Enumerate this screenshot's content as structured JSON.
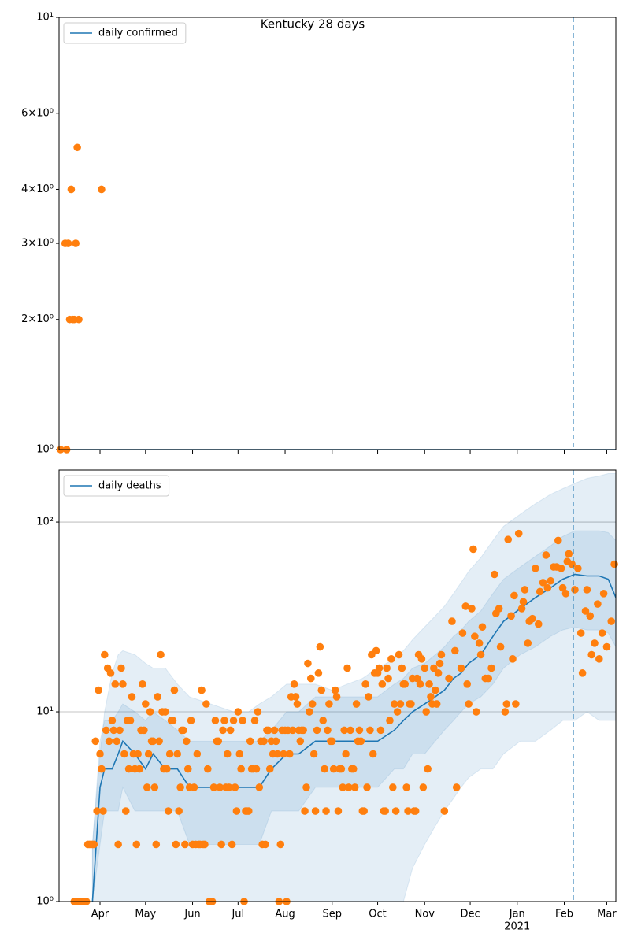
{
  "chart_data": [
    {
      "type": "line",
      "title": "Kentucky 28 days",
      "yscale": "log",
      "grid": false,
      "legend": "upper left",
      "xlim": [
        0,
        367
      ],
      "xticks": [
        27,
        57,
        88,
        118,
        149,
        180,
        210,
        241,
        271,
        302,
        333,
        361
      ],
      "ylim": [
        1,
        10
      ],
      "yticks": [
        {
          "value": 1,
          "label": "10⁰"
        },
        {
          "value": 2,
          "label": "2×10⁰"
        },
        {
          "value": 3,
          "label": "3×10⁰"
        },
        {
          "value": 4,
          "label": "4×10⁰"
        },
        {
          "value": 6,
          "label": "6×10⁰"
        },
        {
          "value": 10,
          "label": "10¹"
        }
      ],
      "vline": 339,
      "series": [
        {
          "name": "daily confirmed",
          "color": "#1f77b4",
          "x": [
            0,
            367
          ],
          "values": [
            1,
            1
          ]
        }
      ],
      "bands": [],
      "scatter": {
        "color": "#ff7f0e",
        "x": [
          1,
          4,
          5,
          6,
          7,
          8,
          9,
          10,
          11,
          12,
          13,
          28
        ],
        "values": [
          1,
          3,
          1,
          3,
          2,
          4,
          2,
          2,
          3,
          5,
          2,
          4
        ]
      }
    },
    {
      "type": "line",
      "yscale": "log",
      "grid": true,
      "legend": "upper left",
      "xlim": [
        0,
        367
      ],
      "xticks": [
        {
          "value": 27,
          "label": "Apr"
        },
        {
          "value": 57,
          "label": "May"
        },
        {
          "value": 88,
          "label": "Jun"
        },
        {
          "value": 118,
          "label": "Jul"
        },
        {
          "value": 149,
          "label": "Aug"
        },
        {
          "value": 180,
          "label": "Sep"
        },
        {
          "value": 210,
          "label": "Oct"
        },
        {
          "value": 241,
          "label": "Nov"
        },
        {
          "value": 271,
          "label": "Dec"
        },
        {
          "value": 302,
          "label": "Jan",
          "sublabel": "2021"
        },
        {
          "value": 333,
          "label": "Feb"
        },
        {
          "value": 361,
          "label": "Mar"
        }
      ],
      "ylim": [
        1,
        188
      ],
      "yticks": [
        {
          "value": 1,
          "label": "10⁰"
        },
        {
          "value": 10,
          "label": "10¹"
        },
        {
          "value": 100,
          "label": "10²"
        }
      ],
      "vline": 339,
      "series": [
        {
          "name": "daily deaths",
          "color": "#1f77b4",
          "x": [
            22,
            27,
            30,
            35,
            39,
            42,
            50,
            57,
            62,
            70,
            78,
            86,
            100,
            115,
            125,
            132,
            140,
            150,
            158,
            169,
            180,
            190,
            200,
            210,
            221,
            227,
            233,
            241,
            248,
            254,
            260,
            265,
            270,
            278,
            286,
            293,
            304,
            314,
            324,
            332,
            340,
            348,
            356,
            362,
            367
          ],
          "values": [
            1,
            4,
            5,
            5,
            6,
            7,
            6,
            5,
            6,
            5,
            5,
            4,
            4,
            4,
            4,
            4,
            5,
            6,
            6,
            7,
            7,
            7,
            7,
            7,
            8,
            9,
            10,
            11,
            12,
            13,
            15,
            16,
            18,
            20,
            25,
            30,
            35,
            40,
            45,
            50,
            53,
            52,
            52,
            50,
            40
          ]
        }
      ],
      "bands": [
        {
          "color": "#1f77b4",
          "lower": [
            1,
            1,
            1,
            1,
            1,
            1,
            1,
            1,
            1,
            1,
            1,
            1,
            1,
            1,
            1,
            1,
            1,
            1,
            1,
            1,
            1,
            1,
            1,
            1,
            1,
            1,
            1.5,
            2,
            2.5,
            3,
            3.5,
            4,
            4.5,
            5,
            5,
            6,
            7,
            7,
            8,
            9,
            9,
            10,
            9,
            9,
            9
          ],
          "upper": [
            2,
            6,
            10,
            16,
            20,
            21,
            20,
            18,
            17,
            17,
            14,
            12,
            11,
            10,
            10,
            11,
            12,
            14,
            14,
            14,
            13,
            14,
            15,
            17,
            19,
            21,
            24,
            28,
            32,
            36,
            42,
            48,
            55,
            65,
            80,
            95,
            110,
            125,
            140,
            150,
            160,
            170,
            175,
            180,
            180
          ]
        },
        {
          "color": "#1f77b4",
          "lower": [
            1,
            2,
            3,
            3,
            3,
            4,
            3,
            3,
            3,
            3,
            3,
            2,
            2,
            2,
            2,
            2,
            3,
            3,
            3,
            4,
            4,
            4,
            4,
            4,
            5,
            5,
            6,
            6,
            7,
            8,
            9,
            10,
            11,
            12,
            14,
            17,
            20,
            22,
            25,
            27,
            28,
            27,
            27,
            26,
            22
          ],
          "upper": [
            2,
            7,
            9,
            9,
            10,
            11,
            10,
            9,
            10,
            9,
            8,
            7,
            7,
            7,
            7,
            7,
            8,
            10,
            10,
            12,
            12,
            12,
            12,
            12,
            14,
            15,
            17,
            18,
            20,
            22,
            25,
            27,
            30,
            34,
            42,
            50,
            58,
            66,
            75,
            84,
            90,
            90,
            90,
            88,
            80
          ]
        }
      ],
      "scatter": {
        "color": "#ff7f0e",
        "x": [
          10,
          11,
          12,
          13,
          14,
          15,
          16,
          17,
          18,
          19,
          20,
          21,
          22,
          23,
          24,
          25,
          26,
          27,
          28,
          29,
          30,
          31,
          32,
          33,
          34,
          35,
          36,
          37,
          38,
          39,
          40,
          41,
          42,
          43,
          44,
          45,
          46,
          47,
          48,
          49,
          50,
          51,
          52,
          53,
          54,
          55,
          56,
          57,
          58,
          59,
          60,
          61,
          62,
          63,
          64,
          65,
          66,
          67,
          68,
          69,
          70,
          71,
          72,
          73,
          74,
          75,
          76,
          77,
          78,
          79,
          80,
          81,
          82,
          83,
          84,
          85,
          86,
          87,
          88,
          89,
          90,
          91,
          92,
          93,
          94,
          95,
          96,
          97,
          98,
          99,
          100,
          101,
          102,
          103,
          104,
          105,
          106,
          107,
          108,
          109,
          110,
          111,
          112,
          113,
          114,
          115,
          116,
          117,
          118,
          119,
          120,
          121,
          122,
          123,
          124,
          125,
          126,
          127,
          128,
          129,
          130,
          131,
          132,
          133,
          134,
          135,
          136,
          137,
          138,
          139,
          140,
          141,
          142,
          143,
          144,
          145,
          146,
          147,
          148,
          149,
          150,
          151,
          152,
          153,
          154,
          155,
          156,
          157,
          158,
          159,
          160,
          161,
          162,
          163,
          164,
          165,
          166,
          167,
          168,
          169,
          170,
          171,
          172,
          173,
          174,
          175,
          176,
          177,
          178,
          179,
          180,
          181,
          182,
          183,
          184,
          185,
          186,
          187,
          188,
          189,
          190,
          191,
          192,
          193,
          194,
          195,
          196,
          197,
          198,
          199,
          200,
          201,
          202,
          203,
          204,
          205,
          206,
          207,
          208,
          209,
          210,
          211,
          212,
          213,
          214,
          215,
          216,
          217,
          218,
          219,
          220,
          221,
          222,
          223,
          224,
          225,
          226,
          227,
          228,
          229,
          230,
          231,
          232,
          233,
          234,
          235,
          236,
          237,
          238,
          239,
          240,
          241,
          242,
          243,
          244,
          245,
          246,
          247,
          248,
          249,
          250,
          251,
          252,
          254,
          257,
          259,
          261,
          262,
          265,
          266,
          268,
          269,
          270,
          272,
          273,
          274,
          275,
          277,
          278,
          279,
          281,
          283,
          285,
          287,
          288,
          290,
          291,
          294,
          295,
          296,
          298,
          299,
          300,
          301,
          303,
          305,
          306,
          307,
          309,
          310,
          312,
          314,
          316,
          317,
          319,
          321,
          322,
          324,
          326,
          328,
          329,
          331,
          332,
          334,
          335,
          336,
          338,
          340,
          342,
          344,
          345,
          347,
          348,
          350,
          351,
          353,
          355,
          356,
          358,
          359,
          361,
          364,
          366
        ],
        "values": [
          1,
          1,
          1,
          1,
          1,
          1,
          1,
          1,
          1,
          2,
          2,
          2,
          2,
          2,
          7,
          3,
          13,
          6,
          5,
          3,
          20,
          8,
          17,
          7,
          16,
          9,
          8,
          14,
          7,
          2,
          8,
          17,
          14,
          6,
          3,
          9,
          5,
          9,
          12,
          6,
          5,
          2,
          6,
          5,
          8,
          14,
          8,
          11,
          4,
          6,
          10,
          7,
          7,
          4,
          2,
          12,
          7,
          20,
          10,
          5,
          10,
          5,
          3,
          6,
          9,
          9,
          13,
          2,
          6,
          3,
          4,
          8,
          8,
          2,
          7,
          5,
          4,
          9,
          2,
          4,
          2,
          6,
          2,
          2,
          13,
          2,
          2,
          11,
          5,
          1,
          1,
          1,
          4,
          9,
          7,
          7,
          4,
          2,
          8,
          9,
          4,
          6,
          4,
          8,
          2,
          9,
          4,
          3,
          10,
          6,
          5,
          9,
          1,
          3,
          3,
          3,
          7,
          5,
          5,
          9,
          5,
          10,
          4,
          7,
          2,
          7,
          2,
          8,
          8,
          5,
          7,
          6,
          8,
          7,
          6,
          1,
          2,
          8,
          6,
          8,
          1,
          8,
          6,
          12,
          8,
          14,
          12,
          11,
          8,
          7,
          8,
          8,
          3,
          4,
          18,
          10,
          15,
          11,
          6,
          3,
          8,
          16,
          22,
          13,
          9,
          5,
          3,
          8,
          11,
          7,
          7,
          5,
          13,
          12,
          3,
          5,
          5,
          4,
          8,
          6,
          17,
          4,
          8,
          5,
          5,
          4,
          11,
          7,
          8,
          7,
          3,
          3,
          14,
          4,
          12,
          8,
          20,
          6,
          16,
          21,
          16,
          17,
          8,
          14,
          3,
          3,
          17,
          15,
          9,
          19,
          4,
          11,
          3,
          10,
          20,
          11,
          17,
          14,
          14,
          4,
          3,
          11,
          11,
          15,
          3,
          3,
          15,
          20,
          14,
          19,
          4,
          17,
          10,
          5,
          14,
          12,
          11,
          17,
          13,
          11,
          16,
          18,
          20,
          3,
          15,
          30,
          21,
          4,
          17,
          26,
          36,
          14,
          11,
          35,
          72,
          25,
          10,
          23,
          20,
          28,
          15,
          15,
          17,
          53,
          33,
          35,
          22,
          10,
          11,
          81,
          32,
          19,
          41,
          11,
          87,
          35,
          38,
          44,
          23,
          30,
          31,
          57,
          29,
          43,
          48,
          67,
          45,
          49,
          58,
          58,
          80,
          57,
          45,
          42,
          62,
          68,
          60,
          44,
          57,
          26,
          16,
          34,
          44,
          32,
          20,
          23,
          37,
          19,
          26,
          42,
          22,
          30,
          60
        ]
      }
    }
  ]
}
